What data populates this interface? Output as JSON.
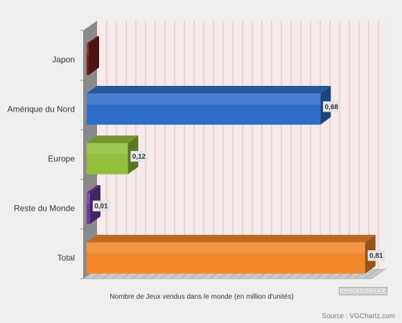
{
  "chart_data": {
    "type": "bar",
    "orientation": "horizontal",
    "categories": [
      "Japon",
      "Amérique du Nord",
      "Europe",
      "Reste du Monde",
      "Total"
    ],
    "values": [
      0,
      0.68,
      0.12,
      0.01,
      0.81
    ],
    "value_labels": [
      "",
      "0,68",
      "0,12",
      "0,01",
      "0,81"
    ],
    "colors": [
      "#7a1e22",
      "#2f6fc9",
      "#93c03c",
      "#6a3d9e",
      "#f2882a"
    ],
    "xlabel": "Nombre de Jeux vendus dans le monde (en million d'unités)",
    "xlim": [
      0,
      1.05
    ],
    "grid": true,
    "legend": "none",
    "style": "3d"
  },
  "logo_text": "EMULATION64.FR",
  "source": "Source : VGChartz.com"
}
